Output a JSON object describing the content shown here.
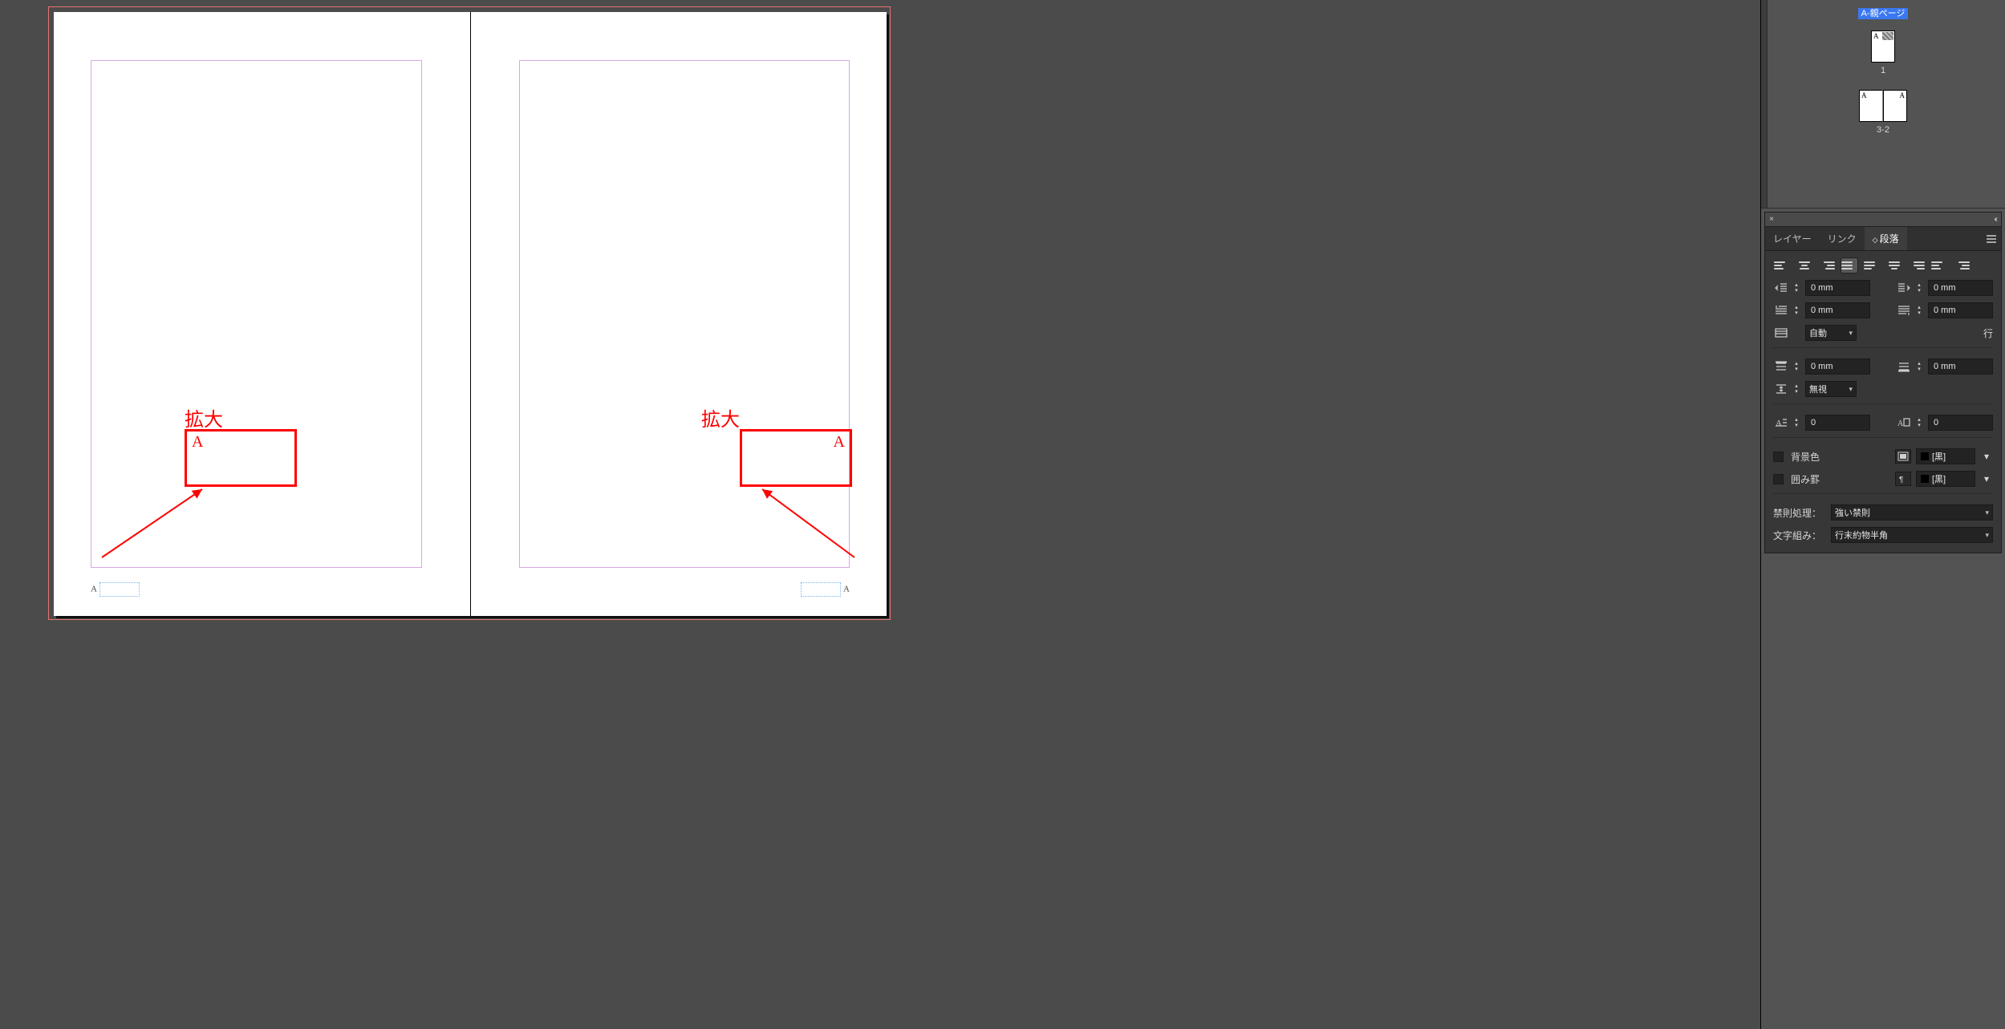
{
  "colors": {
    "workspace_bg": "#4b4b4b",
    "panel_bg": "#373737",
    "panel_head_bg": "#4a4a4a",
    "text": "#d6d6d6",
    "bleed_border": "#e97272",
    "margin_border": "#d7a8e0",
    "annotation": "#ff0000",
    "selection": "#3a78f2",
    "field_bg": "#232323",
    "page_bg": "#ffffff"
  },
  "spread": {
    "left_page": {
      "callout_label": "拡大",
      "callout_text": "A",
      "foot_marker": "A"
    },
    "right_page": {
      "callout_label": "拡大",
      "callout_text": "A",
      "foot_marker": "A"
    }
  },
  "pages_panel": {
    "master_label": "A-親ページ",
    "thumb1_caption": "1",
    "thumb_spread_caption": "3-2",
    "corner_marker": "A"
  },
  "panel_head": {
    "close_glyph": "×",
    "collapse_glyph": "‹‹"
  },
  "tabs": {
    "layers": "レイヤー",
    "links": "リンク",
    "paragraph": "段落"
  },
  "align_buttons": [
    {
      "name": "align-left",
      "widths": [
        14,
        10,
        12
      ],
      "align": "flex-start"
    },
    {
      "name": "align-center",
      "widths": [
        14,
        8,
        12
      ],
      "align": "center"
    },
    {
      "name": "align-right",
      "widths": [
        14,
        10,
        12
      ],
      "align": "flex-end"
    },
    {
      "name": "align-justify-full",
      "widths": [
        14,
        14,
        14
      ],
      "align": "stretch",
      "active": true
    },
    {
      "name": "align-justify-left",
      "widths": [
        14,
        14,
        10
      ],
      "align": "stretch-l"
    },
    {
      "name": "align-justify-center",
      "widths": [
        14,
        14,
        8
      ],
      "align": "stretch-c"
    },
    {
      "name": "align-justify-right",
      "widths": [
        14,
        14,
        10
      ],
      "align": "stretch-r"
    },
    {
      "name": "align-towards-spine",
      "widths": [
        14,
        10,
        12
      ],
      "align": "flex-start"
    },
    {
      "name": "align-away-spine",
      "widths": [
        14,
        10,
        12
      ],
      "align": "flex-end"
    }
  ],
  "fields": {
    "indent_left": "0 mm",
    "indent_right": "0 mm",
    "first_line_indent": "0 mm",
    "last_line_indent": "0 mm",
    "grid_align": "自動",
    "grid_unit": "行",
    "space_before": "0 mm",
    "space_after": "0 mm",
    "space_between": "無視",
    "drop_cap_lines": "0",
    "drop_cap_chars": "0"
  },
  "checkboxes": {
    "shading_label": "背景色",
    "shading_value": "[黒]",
    "border_label": "囲み罫",
    "border_value": "[黒]"
  },
  "bottom_selects": {
    "kinsoku_label": "禁則処理：",
    "kinsoku_value": "強い禁則",
    "mojikumi_label": "文字組み：",
    "mojikumi_value": "行末約物半角"
  }
}
